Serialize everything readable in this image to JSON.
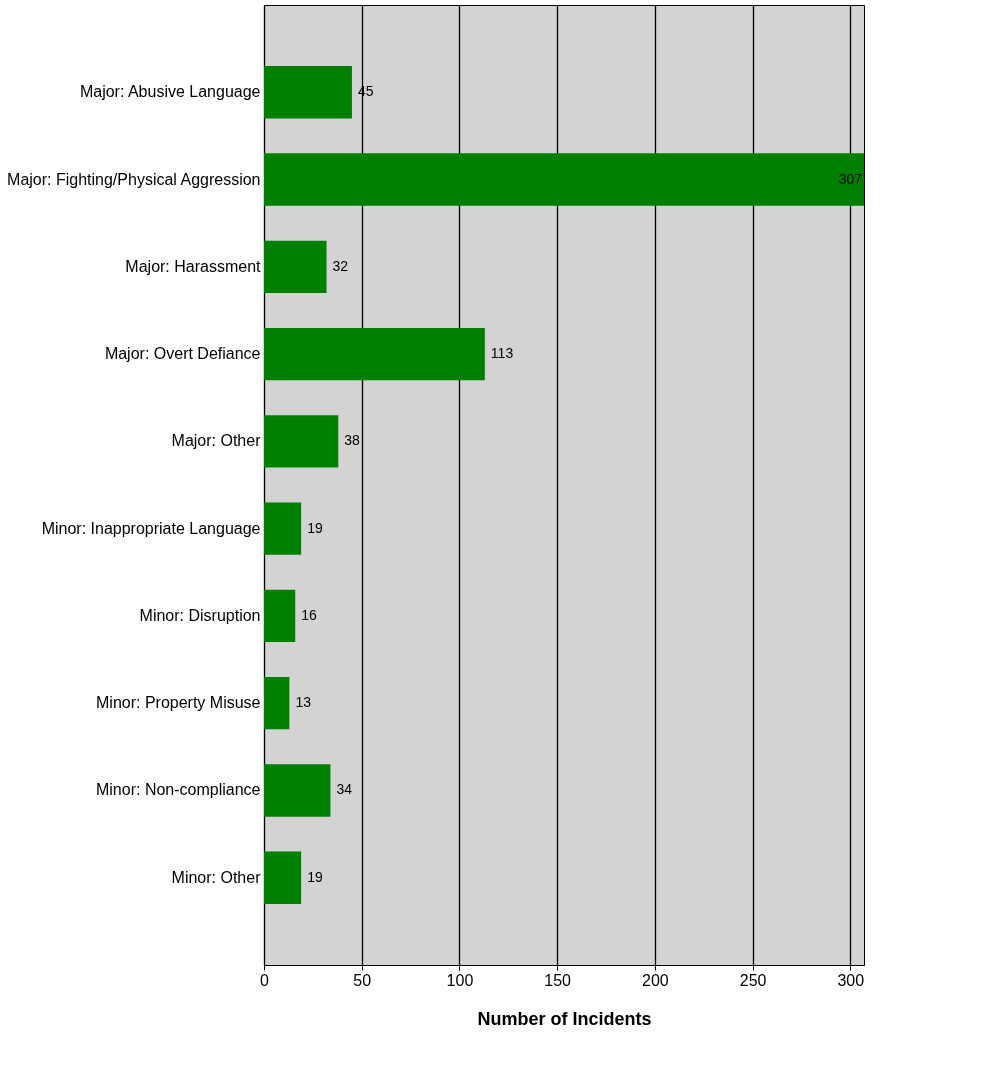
{
  "chart_data": {
    "type": "bar",
    "orientation": "horizontal",
    "xlabel": "Number of Incidents",
    "categories": [
      "Major: Abusive Language",
      "Major: Fighting/Physical Aggression",
      "Major: Harassment",
      "Major: Overt Defiance",
      "Major: Other",
      "Minor: Inappropriate Language",
      "Minor: Disruption",
      "Minor: Property Misuse",
      "Minor: Non-compliance",
      "Minor: Other"
    ],
    "values": [
      45,
      307,
      32,
      113,
      38,
      19,
      16,
      13,
      34,
      19
    ],
    "color": "#008000",
    "xlim": [
      0,
      307
    ],
    "xticks": [
      0,
      50,
      100,
      150,
      200,
      250,
      300
    ],
    "grid": "x",
    "data_labels": true
  }
}
